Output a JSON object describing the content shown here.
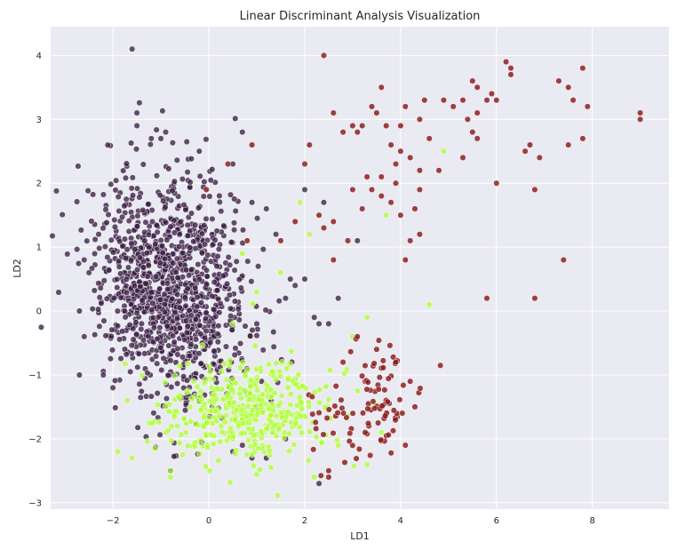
{
  "chart_data": {
    "type": "scatter",
    "title": "Linear Discriminant Analysis Visualization",
    "xlabel": "LD1",
    "ylabel": "LD2",
    "xlim": [
      -3.3,
      9.6
    ],
    "ylim": [
      -3.1,
      4.45
    ],
    "xticks": [
      -2,
      0,
      2,
      4,
      6,
      8
    ],
    "yticks": [
      -3,
      -2,
      -1,
      0,
      1,
      2,
      3,
      4
    ],
    "grid": true,
    "legend": "none",
    "background": "#eaeaf2",
    "series": [
      {
        "color": "#3b1f45",
        "opacity": 0.78,
        "generated": {
          "n": 1150,
          "seed": 7,
          "mean": [
            -0.8,
            0.4
          ],
          "std": [
            0.75,
            0.85
          ],
          "corr": -0.15
        },
        "points": [
          [
            -1.6,
            4.1
          ],
          [
            -1.5,
            3.1
          ],
          [
            -1.5,
            2.9
          ],
          [
            -1.2,
            2.7
          ],
          [
            -1.0,
            2.7
          ],
          [
            -0.9,
            2.8
          ],
          [
            -0.2,
            2.5
          ],
          [
            0.7,
            2.8
          ],
          [
            0.5,
            2.3
          ],
          [
            -2.3,
            1.2
          ],
          [
            -2.5,
            0.6
          ],
          [
            -2.6,
            0.8
          ],
          [
            -2.7,
            0.0
          ],
          [
            -2.6,
            -0.4
          ],
          [
            -2.7,
            -1.0
          ],
          [
            -2.2,
            -1.0
          ],
          [
            -2.0,
            -1.2
          ],
          [
            0.9,
            1.7
          ],
          [
            1.2,
            1.6
          ],
          [
            1.4,
            1.2
          ],
          [
            1.7,
            0.5
          ],
          [
            1.8,
            0.4
          ],
          [
            1.6,
            0.2
          ],
          [
            2.0,
            0.5
          ],
          [
            2.2,
            -0.1
          ],
          [
            2.3,
            -0.2
          ],
          [
            2.5,
            -0.2
          ],
          [
            2.7,
            0.2
          ],
          [
            2.4,
            1.7
          ],
          [
            3.1,
            1.1
          ],
          [
            2.0,
            1.9
          ],
          [
            1.0,
            -0.2
          ],
          [
            0.8,
            -0.9
          ],
          [
            1.1,
            -1.1
          ],
          [
            1.3,
            -1.4
          ],
          [
            1.0,
            -1.5
          ],
          [
            0.7,
            -2.1
          ],
          [
            0.5,
            -2.2
          ],
          [
            0.9,
            -2.3
          ],
          [
            1.2,
            -2.3
          ],
          [
            -0.3,
            -1.3
          ],
          [
            -0.8,
            -2.5
          ],
          [
            1.6,
            -2.0
          ],
          [
            2.3,
            -2.7
          ]
        ]
      },
      {
        "color": "#adff2f",
        "opacity": 0.72,
        "generated": {
          "n": 420,
          "seed": 21,
          "mean": [
            0.8,
            -1.55
          ],
          "std": [
            0.9,
            0.4
          ],
          "corr": 0.1
        },
        "points": [
          [
            -1.9,
            -2.2
          ],
          [
            -1.6,
            -2.3
          ],
          [
            -1.7,
            -1.4
          ],
          [
            -0.8,
            -2.5
          ],
          [
            -0.8,
            -2.6
          ],
          [
            4.6,
            0.1
          ],
          [
            4.9,
            2.5
          ],
          [
            3.7,
            1.5
          ],
          [
            1.9,
            1.7
          ],
          [
            2.1,
            1.2
          ],
          [
            1.5,
            0.6
          ],
          [
            3.0,
            -0.4
          ],
          [
            3.3,
            -0.1
          ],
          [
            2.2,
            -2.6
          ],
          [
            3.3,
            -2.4
          ],
          [
            3.6,
            -1.9
          ],
          [
            2.7,
            -2.1
          ],
          [
            0.7,
            0.9
          ],
          [
            1.0,
            0.3
          ],
          [
            0.5,
            -0.2
          ]
        ]
      },
      {
        "color": "#8b1a1a",
        "opacity": 0.82,
        "generated": {
          "n": 95,
          "seed": 33,
          "mean": [
            3.3,
            -1.5
          ],
          "std": [
            0.55,
            0.42
          ],
          "corr": 0.15
        },
        "points": [
          [
            2.4,
            4.0
          ],
          [
            2.6,
            3.1
          ],
          [
            2.1,
            2.6
          ],
          [
            2.0,
            2.3
          ],
          [
            0.9,
            2.6
          ],
          [
            0.4,
            2.3
          ],
          [
            -0.05,
            1.9
          ],
          [
            2.8,
            2.8
          ],
          [
            3.0,
            2.9
          ],
          [
            3.2,
            2.9
          ],
          [
            3.3,
            2.1
          ],
          [
            3.4,
            3.2
          ],
          [
            3.5,
            3.1
          ],
          [
            3.6,
            3.5
          ],
          [
            3.7,
            2.9
          ],
          [
            3.8,
            2.6
          ],
          [
            3.9,
            2.3
          ],
          [
            4.0,
            2.9
          ],
          [
            4.1,
            3.2
          ],
          [
            4.2,
            2.4
          ],
          [
            4.4,
            3.0
          ],
          [
            4.5,
            3.3
          ],
          [
            4.6,
            2.7
          ],
          [
            4.8,
            2.2
          ],
          [
            4.9,
            3.3
          ],
          [
            5.1,
            3.2
          ],
          [
            5.3,
            3.3
          ],
          [
            5.4,
            3.0
          ],
          [
            5.5,
            3.6
          ],
          [
            5.6,
            3.5
          ],
          [
            5.6,
            3.1
          ],
          [
            5.8,
            3.3
          ],
          [
            5.5,
            2.8
          ],
          [
            5.9,
            3.4
          ],
          [
            6.0,
            3.3
          ],
          [
            6.2,
            3.9
          ],
          [
            6.3,
            3.8
          ],
          [
            6.3,
            3.7
          ],
          [
            7.3,
            3.6
          ],
          [
            7.5,
            3.5
          ],
          [
            7.6,
            3.3
          ],
          [
            7.8,
            3.8
          ],
          [
            7.9,
            3.2
          ],
          [
            7.8,
            2.7
          ],
          [
            9.0,
            3.1
          ],
          [
            9.0,
            3.0
          ],
          [
            6.6,
            2.5
          ],
          [
            6.7,
            2.6
          ],
          [
            6.9,
            2.4
          ],
          [
            6.8,
            1.9
          ],
          [
            6.0,
            2.0
          ],
          [
            5.3,
            2.4
          ],
          [
            5.6,
            2.7
          ],
          [
            7.5,
            2.6
          ],
          [
            7.4,
            0.8
          ],
          [
            6.8,
            0.2
          ],
          [
            5.8,
            0.2
          ],
          [
            4.1,
            0.8
          ],
          [
            4.2,
            1.1
          ],
          [
            4.4,
            1.2
          ],
          [
            4.3,
            1.6
          ],
          [
            4.4,
            1.9
          ],
          [
            4.0,
            1.5
          ],
          [
            3.8,
            1.7
          ],
          [
            3.4,
            1.9
          ],
          [
            3.6,
            1.8
          ],
          [
            3.2,
            1.6
          ],
          [
            2.9,
            1.1
          ],
          [
            2.6,
            1.4
          ],
          [
            2.4,
            1.3
          ],
          [
            2.6,
            0.8
          ],
          [
            3.0,
            1.9
          ],
          [
            3.6,
            2.1
          ],
          [
            3.9,
            2.0
          ],
          [
            4.4,
            2.2
          ],
          [
            4.0,
            2.5
          ],
          [
            3.1,
            2.8
          ],
          [
            2.3,
            1.5
          ],
          [
            1.8,
            1.4
          ],
          [
            1.5,
            1.1
          ],
          [
            0.8,
            1.1
          ],
          [
            2.8,
            -0.8
          ],
          [
            3.1,
            -0.4
          ],
          [
            3.5,
            -0.6
          ],
          [
            3.9,
            -0.8
          ],
          [
            4.2,
            -1.1
          ],
          [
            4.3,
            -1.5
          ],
          [
            4.1,
            -2.1
          ],
          [
            2.5,
            -2.5
          ],
          [
            2.5,
            -2.6
          ]
        ]
      }
    ]
  }
}
